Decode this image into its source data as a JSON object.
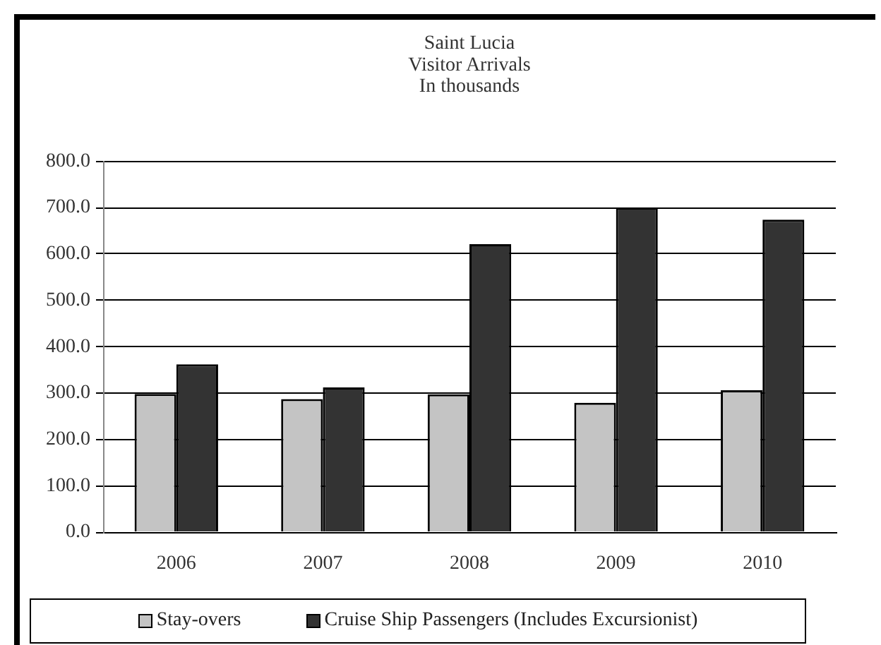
{
  "chart_data": {
    "type": "bar",
    "title": "Saint Lucia\nVisitor Arrivals",
    "subtitle": "In thousands",
    "categories": [
      "2006",
      "2007",
      "2008",
      "2009",
      "2010"
    ],
    "series": [
      {
        "name": "Stay-overs",
        "color": "#c4c4c4",
        "values": [
          298,
          287,
          297,
          279,
          306
        ]
      },
      {
        "name": "Cruise Ship Passengers (Includes Excursionist)",
        "color": "#333333",
        "values": [
          362,
          312,
          621,
          700,
          674
        ]
      }
    ],
    "ylim": [
      0,
      800
    ],
    "yticks": [
      {
        "value": 0,
        "label": "0.0"
      },
      {
        "value": 100,
        "label": "100.0"
      },
      {
        "value": 200,
        "label": "200.0"
      },
      {
        "value": 300,
        "label": "300.0"
      },
      {
        "value": 400,
        "label": "400.0"
      },
      {
        "value": 500,
        "label": "500.0"
      },
      {
        "value": 600,
        "label": "600.0"
      },
      {
        "value": 700,
        "label": "700.0"
      },
      {
        "value": 800,
        "label": "800.0"
      }
    ],
    "grid": "y",
    "legend": "bottom"
  }
}
